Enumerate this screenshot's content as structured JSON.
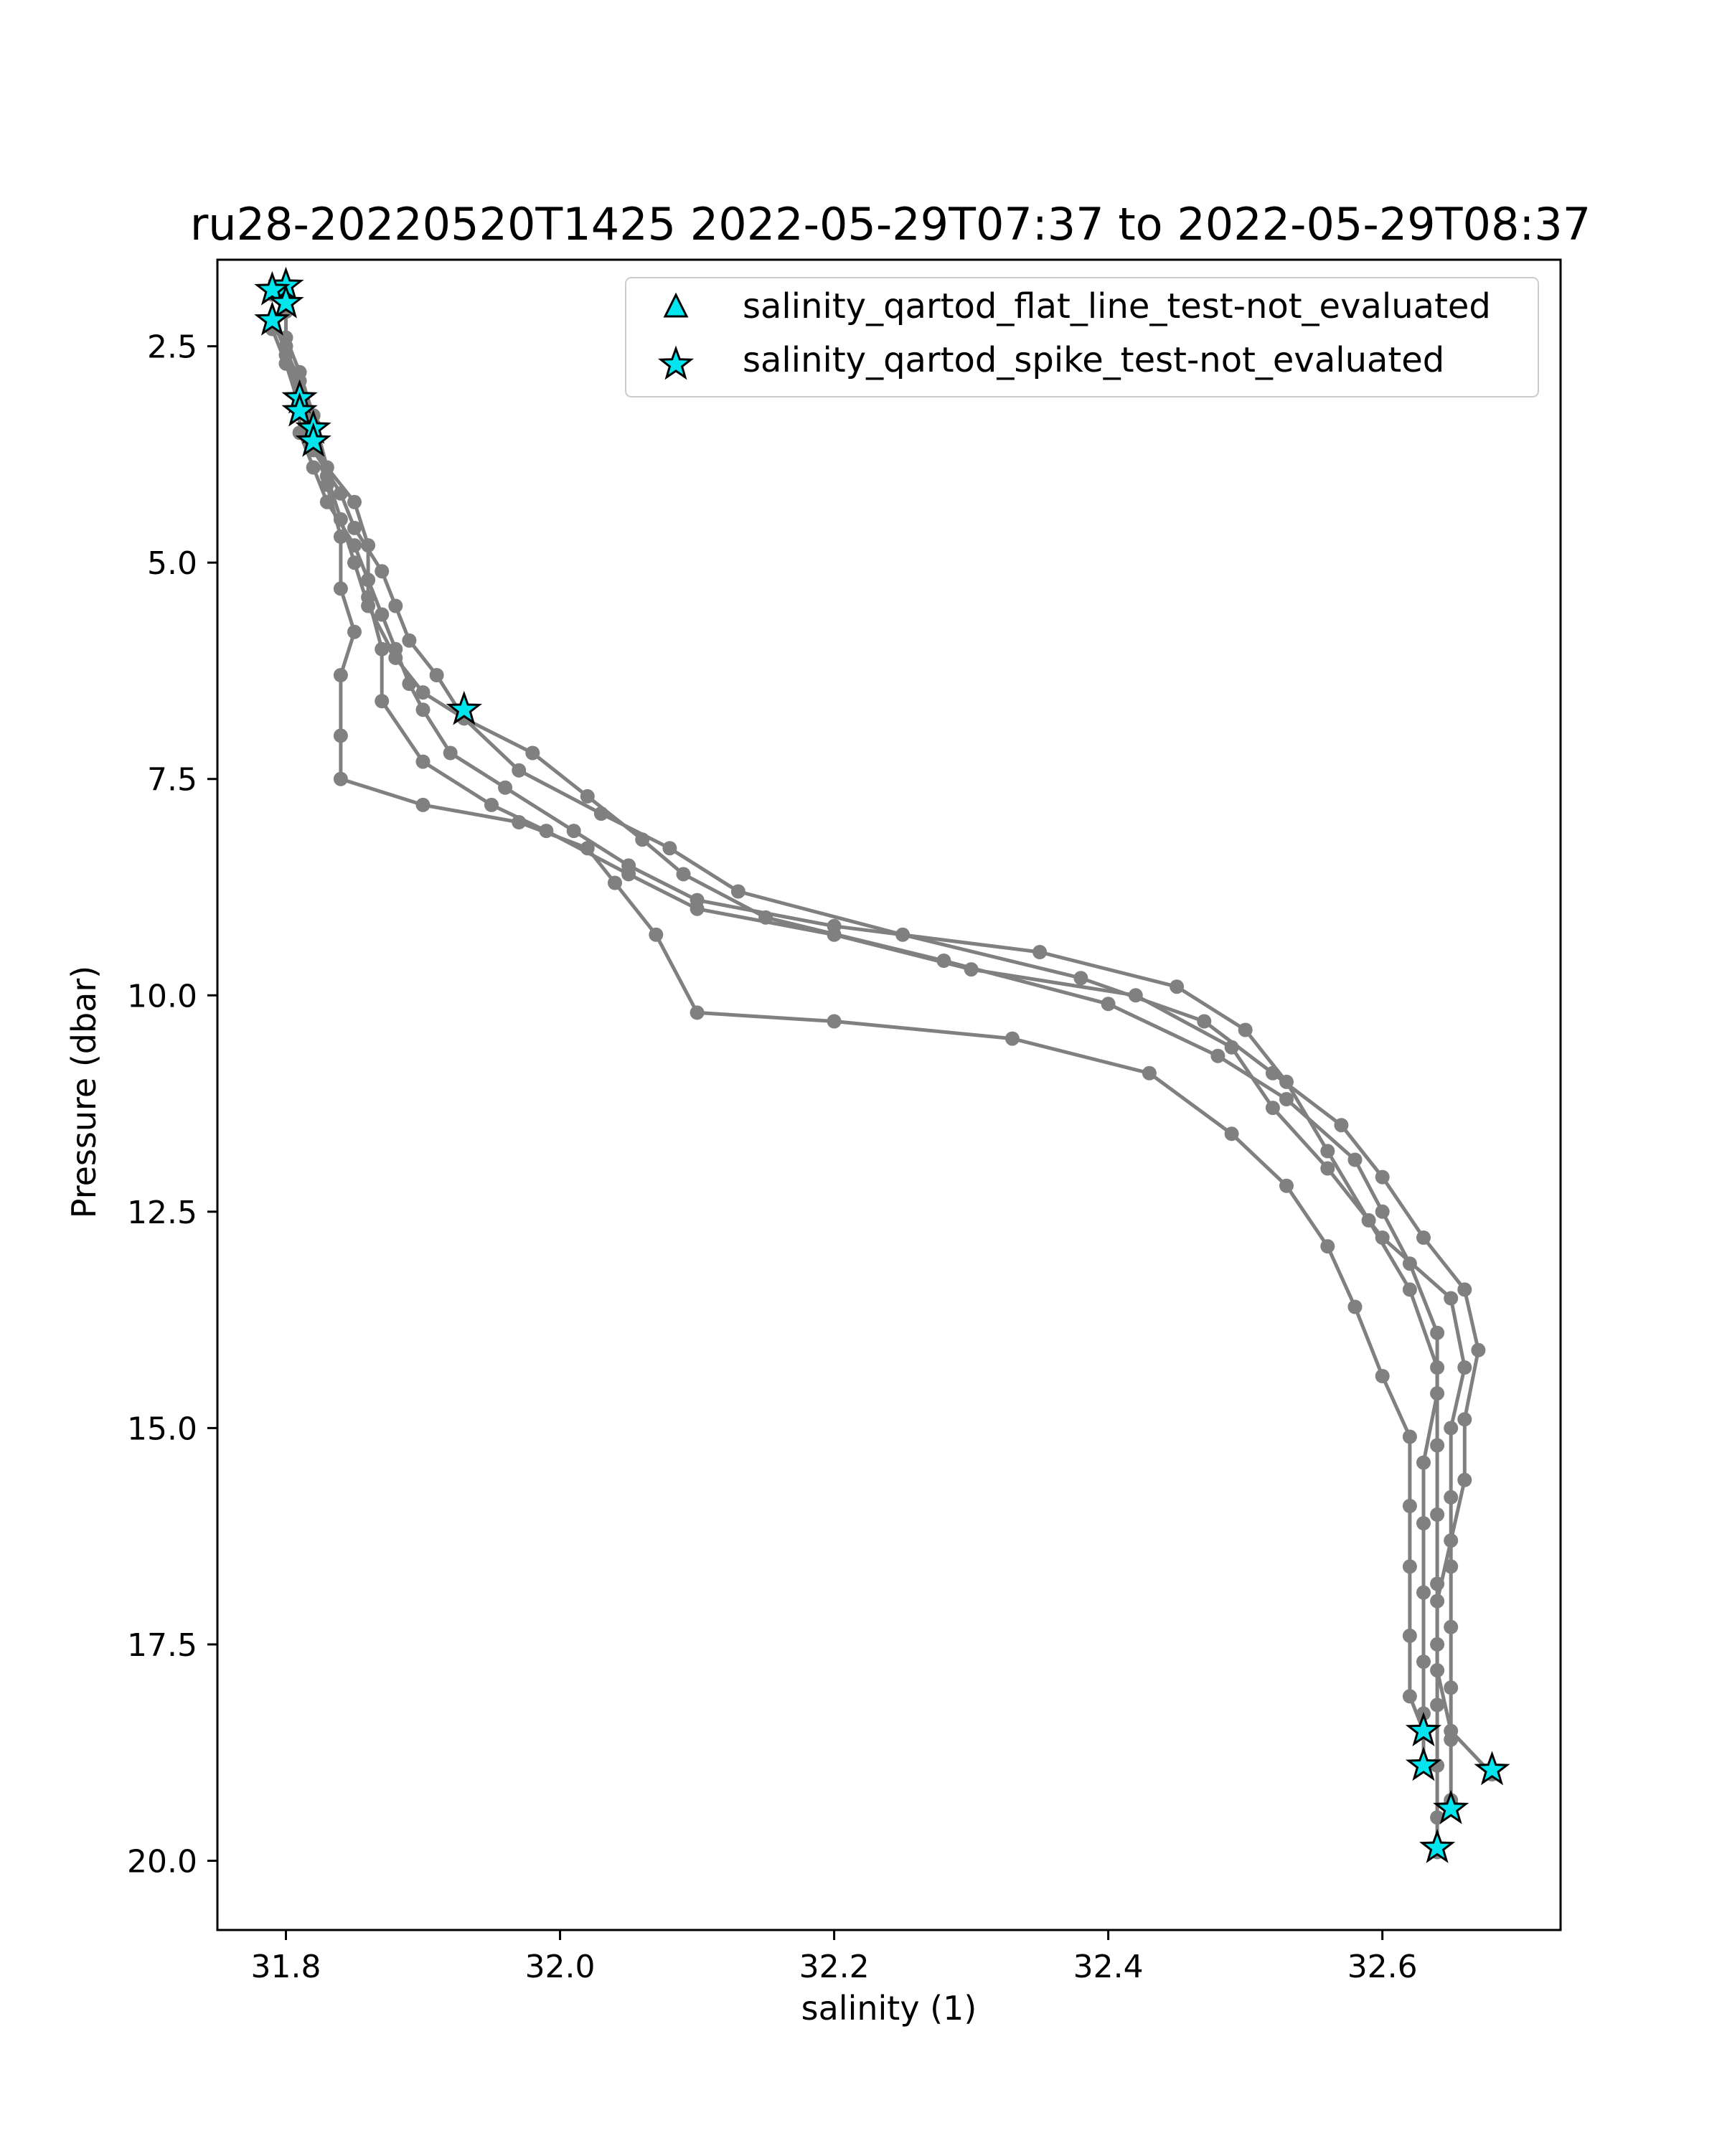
{
  "chart_data": {
    "type": "line",
    "title": "ru28-20220520T1425 2022-05-29T07:37 to 2022-05-29T08:37",
    "xlabel": "salinity (1)",
    "ylabel": "Pressure (dbar)",
    "xlim": [
      31.75,
      32.73
    ],
    "ylim": [
      20.8,
      1.5
    ],
    "y_inverted": true,
    "grid": false,
    "xticks": [
      "31.8",
      "32.0",
      "32.2",
      "32.4",
      "32.6"
    ],
    "yticks": [
      "2.5",
      "5.0",
      "7.5",
      "10.0",
      "12.5",
      "15.0",
      "17.5",
      "20.0"
    ],
    "line_color": "#808080",
    "marker_color": "#00e5ee",
    "legend_position": "top-right",
    "legend": [
      {
        "label": "salinity_qartod_flat_line_test-not_evaluated",
        "marker": "triangle"
      },
      {
        "label": "salinity_qartod_spike_test-not_evaluated",
        "marker": "star"
      }
    ],
    "series": [
      {
        "values": [
          [
            31.79,
            1.9
          ],
          [
            31.8,
            2.1
          ],
          [
            31.8,
            2.5
          ],
          [
            31.81,
            3.0
          ],
          [
            31.81,
            3.5
          ],
          [
            31.82,
            3.9
          ],
          [
            31.83,
            4.3
          ],
          [
            31.85,
            4.8
          ],
          [
            31.86,
            5.2
          ],
          [
            31.87,
            5.6
          ],
          [
            31.88,
            6.0
          ],
          [
            31.89,
            6.4
          ],
          [
            31.9,
            6.7
          ],
          [
            31.92,
            7.2
          ],
          [
            31.96,
            7.6
          ],
          [
            32.01,
            8.1
          ],
          [
            32.05,
            8.5
          ],
          [
            32.1,
            8.9
          ],
          [
            32.2,
            9.2
          ],
          [
            32.35,
            9.5
          ],
          [
            32.45,
            9.9
          ],
          [
            32.5,
            10.4
          ],
          [
            32.53,
            11.0
          ],
          [
            32.56,
            11.8
          ],
          [
            32.59,
            12.6
          ],
          [
            32.62,
            13.4
          ],
          [
            32.64,
            14.3
          ],
          [
            32.64,
            15.2
          ],
          [
            32.64,
            16.0
          ],
          [
            32.64,
            16.8
          ],
          [
            32.64,
            17.5
          ],
          [
            32.64,
            18.2
          ],
          [
            32.64,
            18.9
          ],
          [
            32.64,
            19.5
          ],
          [
            32.64,
            19.9
          ]
        ]
      },
      {
        "values": [
          [
            31.8,
            2.0
          ],
          [
            31.8,
            2.4
          ],
          [
            31.81,
            2.8
          ],
          [
            31.82,
            3.3
          ],
          [
            31.83,
            3.9
          ],
          [
            31.85,
            4.3
          ],
          [
            31.86,
            4.8
          ],
          [
            31.86,
            5.4
          ],
          [
            31.87,
            6.0
          ],
          [
            31.87,
            6.6
          ],
          [
            31.9,
            7.3
          ],
          [
            31.95,
            7.8
          ],
          [
            31.99,
            8.1
          ],
          [
            32.05,
            8.6
          ],
          [
            32.1,
            9.0
          ],
          [
            32.2,
            9.3
          ],
          [
            32.3,
            9.7
          ],
          [
            32.42,
            10.0
          ],
          [
            32.49,
            10.6
          ],
          [
            32.52,
            11.3
          ],
          [
            32.56,
            12.0
          ],
          [
            32.6,
            12.8
          ],
          [
            32.65,
            13.5
          ],
          [
            32.66,
            14.3
          ],
          [
            32.65,
            15.0
          ],
          [
            32.65,
            15.8
          ],
          [
            32.65,
            16.6
          ],
          [
            32.65,
            17.3
          ],
          [
            32.65,
            18.0
          ],
          [
            32.65,
            18.6
          ],
          [
            32.65,
            19.3
          ]
        ]
      },
      {
        "values": [
          [
            31.79,
            2.3
          ],
          [
            31.8,
            2.7
          ],
          [
            31.81,
            3.2
          ],
          [
            31.82,
            3.7
          ],
          [
            31.84,
            4.2
          ],
          [
            31.85,
            4.6
          ],
          [
            31.87,
            5.1
          ],
          [
            31.88,
            5.5
          ],
          [
            31.89,
            5.9
          ],
          [
            31.91,
            6.3
          ],
          [
            31.93,
            6.8
          ],
          [
            31.97,
            7.4
          ],
          [
            32.03,
            7.9
          ],
          [
            32.08,
            8.3
          ],
          [
            32.13,
            8.8
          ],
          [
            32.25,
            9.3
          ],
          [
            32.38,
            9.8
          ],
          [
            32.47,
            10.3
          ],
          [
            32.52,
            10.9
          ],
          [
            32.57,
            11.5
          ],
          [
            32.6,
            12.1
          ],
          [
            32.63,
            12.8
          ],
          [
            32.66,
            13.4
          ],
          [
            32.67,
            14.1
          ],
          [
            32.66,
            14.9
          ],
          [
            32.66,
            15.6
          ],
          [
            32.65,
            16.3
          ],
          [
            32.64,
            17.0
          ],
          [
            32.64,
            17.8
          ],
          [
            32.65,
            18.5
          ],
          [
            32.68,
            19.0
          ]
        ]
      },
      {
        "values": [
          [
            31.8,
            2.6
          ],
          [
            31.81,
            3.1
          ],
          [
            31.82,
            3.6
          ],
          [
            31.83,
            4.0
          ],
          [
            31.84,
            4.5
          ],
          [
            31.85,
            5.0
          ],
          [
            31.86,
            5.5
          ],
          [
            31.88,
            6.1
          ],
          [
            31.9,
            6.5
          ],
          [
            31.93,
            6.8
          ],
          [
            31.98,
            7.2
          ],
          [
            32.02,
            7.7
          ],
          [
            32.06,
            8.2
          ],
          [
            32.09,
            8.6
          ],
          [
            32.15,
            9.1
          ],
          [
            32.28,
            9.6
          ],
          [
            32.4,
            10.1
          ],
          [
            32.48,
            10.7
          ],
          [
            32.53,
            11.2
          ],
          [
            32.58,
            11.9
          ],
          [
            32.6,
            12.5
          ],
          [
            32.62,
            13.1
          ],
          [
            32.64,
            13.9
          ],
          [
            32.64,
            14.6
          ],
          [
            32.63,
            15.4
          ],
          [
            32.63,
            16.1
          ],
          [
            32.63,
            16.9
          ],
          [
            32.63,
            17.7
          ],
          [
            32.63,
            18.3
          ],
          [
            32.63,
            18.9
          ]
        ]
      },
      {
        "values": [
          [
            31.79,
            2.2
          ],
          [
            31.81,
            2.9
          ],
          [
            31.82,
            3.4
          ],
          [
            31.83,
            4.1
          ],
          [
            31.84,
            4.7
          ],
          [
            31.84,
            5.3
          ],
          [
            31.85,
            5.8
          ],
          [
            31.84,
            6.3
          ],
          [
            31.84,
            7.0
          ],
          [
            31.84,
            7.5
          ],
          [
            31.9,
            7.8
          ],
          [
            31.97,
            8.0
          ],
          [
            32.02,
            8.3
          ],
          [
            32.04,
            8.7
          ],
          [
            32.07,
            9.3
          ],
          [
            32.1,
            10.2
          ],
          [
            32.2,
            10.3
          ],
          [
            32.33,
            10.5
          ],
          [
            32.43,
            10.9
          ],
          [
            32.49,
            11.6
          ],
          [
            32.53,
            12.2
          ],
          [
            32.56,
            12.9
          ],
          [
            32.58,
            13.6
          ],
          [
            32.6,
            14.4
          ],
          [
            32.62,
            15.1
          ],
          [
            32.62,
            15.9
          ],
          [
            32.62,
            16.6
          ],
          [
            32.62,
            17.4
          ],
          [
            32.62,
            18.1
          ],
          [
            32.63,
            18.5
          ]
        ]
      }
    ],
    "spike_markers": [
      [
        31.8,
        1.8
      ],
      [
        31.79,
        1.85
      ],
      [
        31.8,
        2.0
      ],
      [
        31.79,
        2.2
      ],
      [
        31.81,
        3.1
      ],
      [
        31.81,
        3.25
      ],
      [
        31.82,
        3.45
      ],
      [
        31.82,
        3.6
      ],
      [
        31.93,
        6.7
      ],
      [
        32.63,
        18.5
      ],
      [
        32.63,
        18.9
      ],
      [
        32.65,
        19.4
      ],
      [
        32.64,
        19.85
      ],
      [
        32.68,
        18.95
      ]
    ]
  }
}
